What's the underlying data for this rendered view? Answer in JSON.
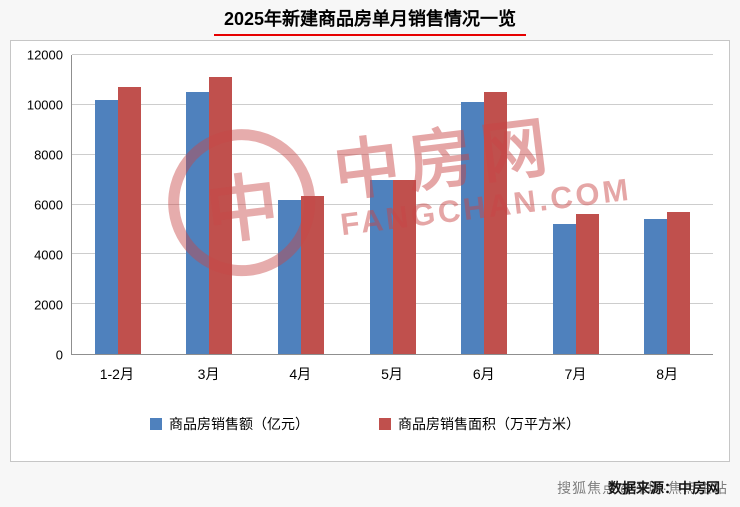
{
  "chart_data": {
    "type": "bar",
    "title": "2025年新建商品房单月销售情况一览",
    "categories": [
      "1-2月",
      "3月",
      "4月",
      "5月",
      "6月",
      "7月",
      "8月"
    ],
    "series": [
      {
        "name": "商品房销售额（亿元）",
        "color": "#4f81bd",
        "values": [
          10200,
          10500,
          6200,
          7000,
          10100,
          5200,
          5400
        ]
      },
      {
        "name": "商品房销售面积（万平方米）",
        "color": "#c0504d",
        "values": [
          10700,
          11100,
          6350,
          7000,
          10500,
          5600,
          5700
        ]
      }
    ],
    "ylim": [
      0,
      12000
    ],
    "yticks": [
      0,
      2000,
      4000,
      6000,
      8000,
      10000,
      12000
    ],
    "grid": true,
    "legend_position": "bottom"
  },
  "watermark": {
    "logo_char": "中",
    "cn": "中房网",
    "en": "FANGCHAN.COM"
  },
  "footer": {
    "source": "数据来源：中房网",
    "overlay": "搜狐焦点@深圳·焦点主站"
  }
}
